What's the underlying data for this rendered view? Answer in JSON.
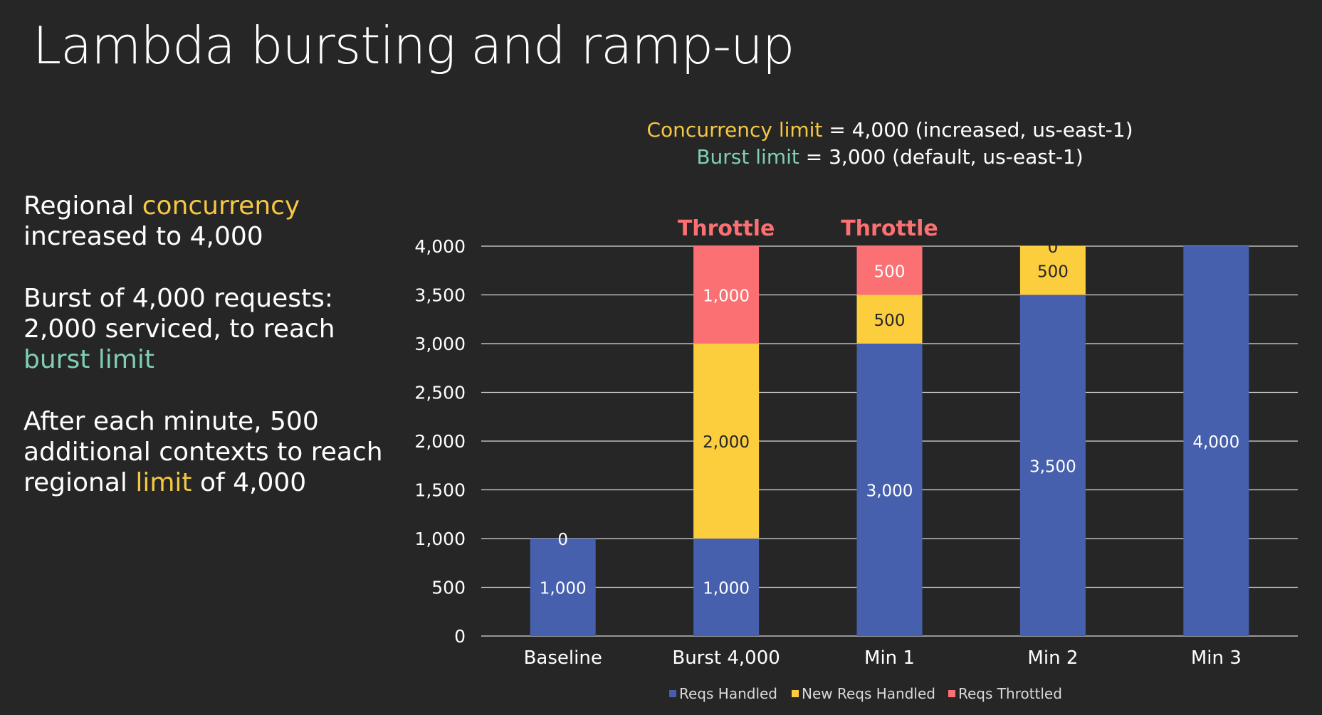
{
  "slide": {
    "title": "Lambda bursting and ramp-up",
    "bullets": [
      {
        "parts": [
          {
            "text": "Regional ",
            "color": "white"
          },
          {
            "text": "concurrency",
            "color": "yellow"
          },
          {
            "text": " increased to 4,000",
            "color": "white"
          }
        ]
      },
      {
        "parts": [
          {
            "text": "Burst of 4,000 requests: 2,000 serviced, to reach ",
            "color": "white"
          },
          {
            "text": "burst limit",
            "color": "teal"
          }
        ]
      },
      {
        "parts": [
          {
            "text": "After each minute, 500 additional contexts to reach regional ",
            "color": "white"
          },
          {
            "text": "limit",
            "color": "yellow"
          },
          {
            "text": " of 4,000",
            "color": "white"
          }
        ]
      }
    ],
    "limits": [
      {
        "term": "Concurrency limit",
        "term_color": "yellow",
        "rest": " = 4,000 (increased, us-east-1)"
      },
      {
        "term": "Burst limit",
        "term_color": "teal",
        "rest": " = 3,000 (default, us-east-1)"
      }
    ]
  },
  "colors": {
    "background": "#262626",
    "yellow": "#f5c842",
    "teal": "#7fcfb6",
    "white": "#ffffff",
    "handled": "#4660ae",
    "new_handled": "#fcce3e",
    "throttled": "#fb7073",
    "throttle_label": "#fb7073",
    "grid": "#d9d9d9"
  },
  "chart_data": {
    "type": "bar",
    "stacked": true,
    "categories": [
      "Baseline",
      "Burst 4,000",
      "Min 1",
      "Min 2",
      "Min 3"
    ],
    "series": [
      {
        "name": "Reqs Handled",
        "color_key": "handled",
        "values": [
          1000,
          1000,
          3000,
          3500,
          4000
        ],
        "labels": [
          "1,000",
          "1,000",
          "3,000",
          "3,500",
          "4,000"
        ]
      },
      {
        "name": "New Reqs Handled",
        "color_key": "new_handled",
        "values": [
          0,
          2000,
          500,
          500,
          0
        ],
        "labels": [
          "0",
          "2,000",
          "500",
          "500",
          ""
        ]
      },
      {
        "name": "Reqs Throttled",
        "color_key": "throttled",
        "values": [
          0,
          1000,
          500,
          0,
          0
        ],
        "labels": [
          "",
          "1,000",
          "500",
          "0",
          ""
        ]
      }
    ],
    "top_annotations": [
      "",
      "Throttle",
      "Throttle",
      "",
      ""
    ],
    "ylim": [
      0,
      4000
    ],
    "yticks": [
      0,
      500,
      1000,
      1500,
      2000,
      2500,
      3000,
      3500,
      4000
    ],
    "ytick_labels": [
      "0",
      "500",
      "1,000",
      "1,500",
      "2,000",
      "2,500",
      "3,000",
      "3,500",
      "4,000"
    ],
    "grid": true,
    "legend_position": "bottom"
  }
}
